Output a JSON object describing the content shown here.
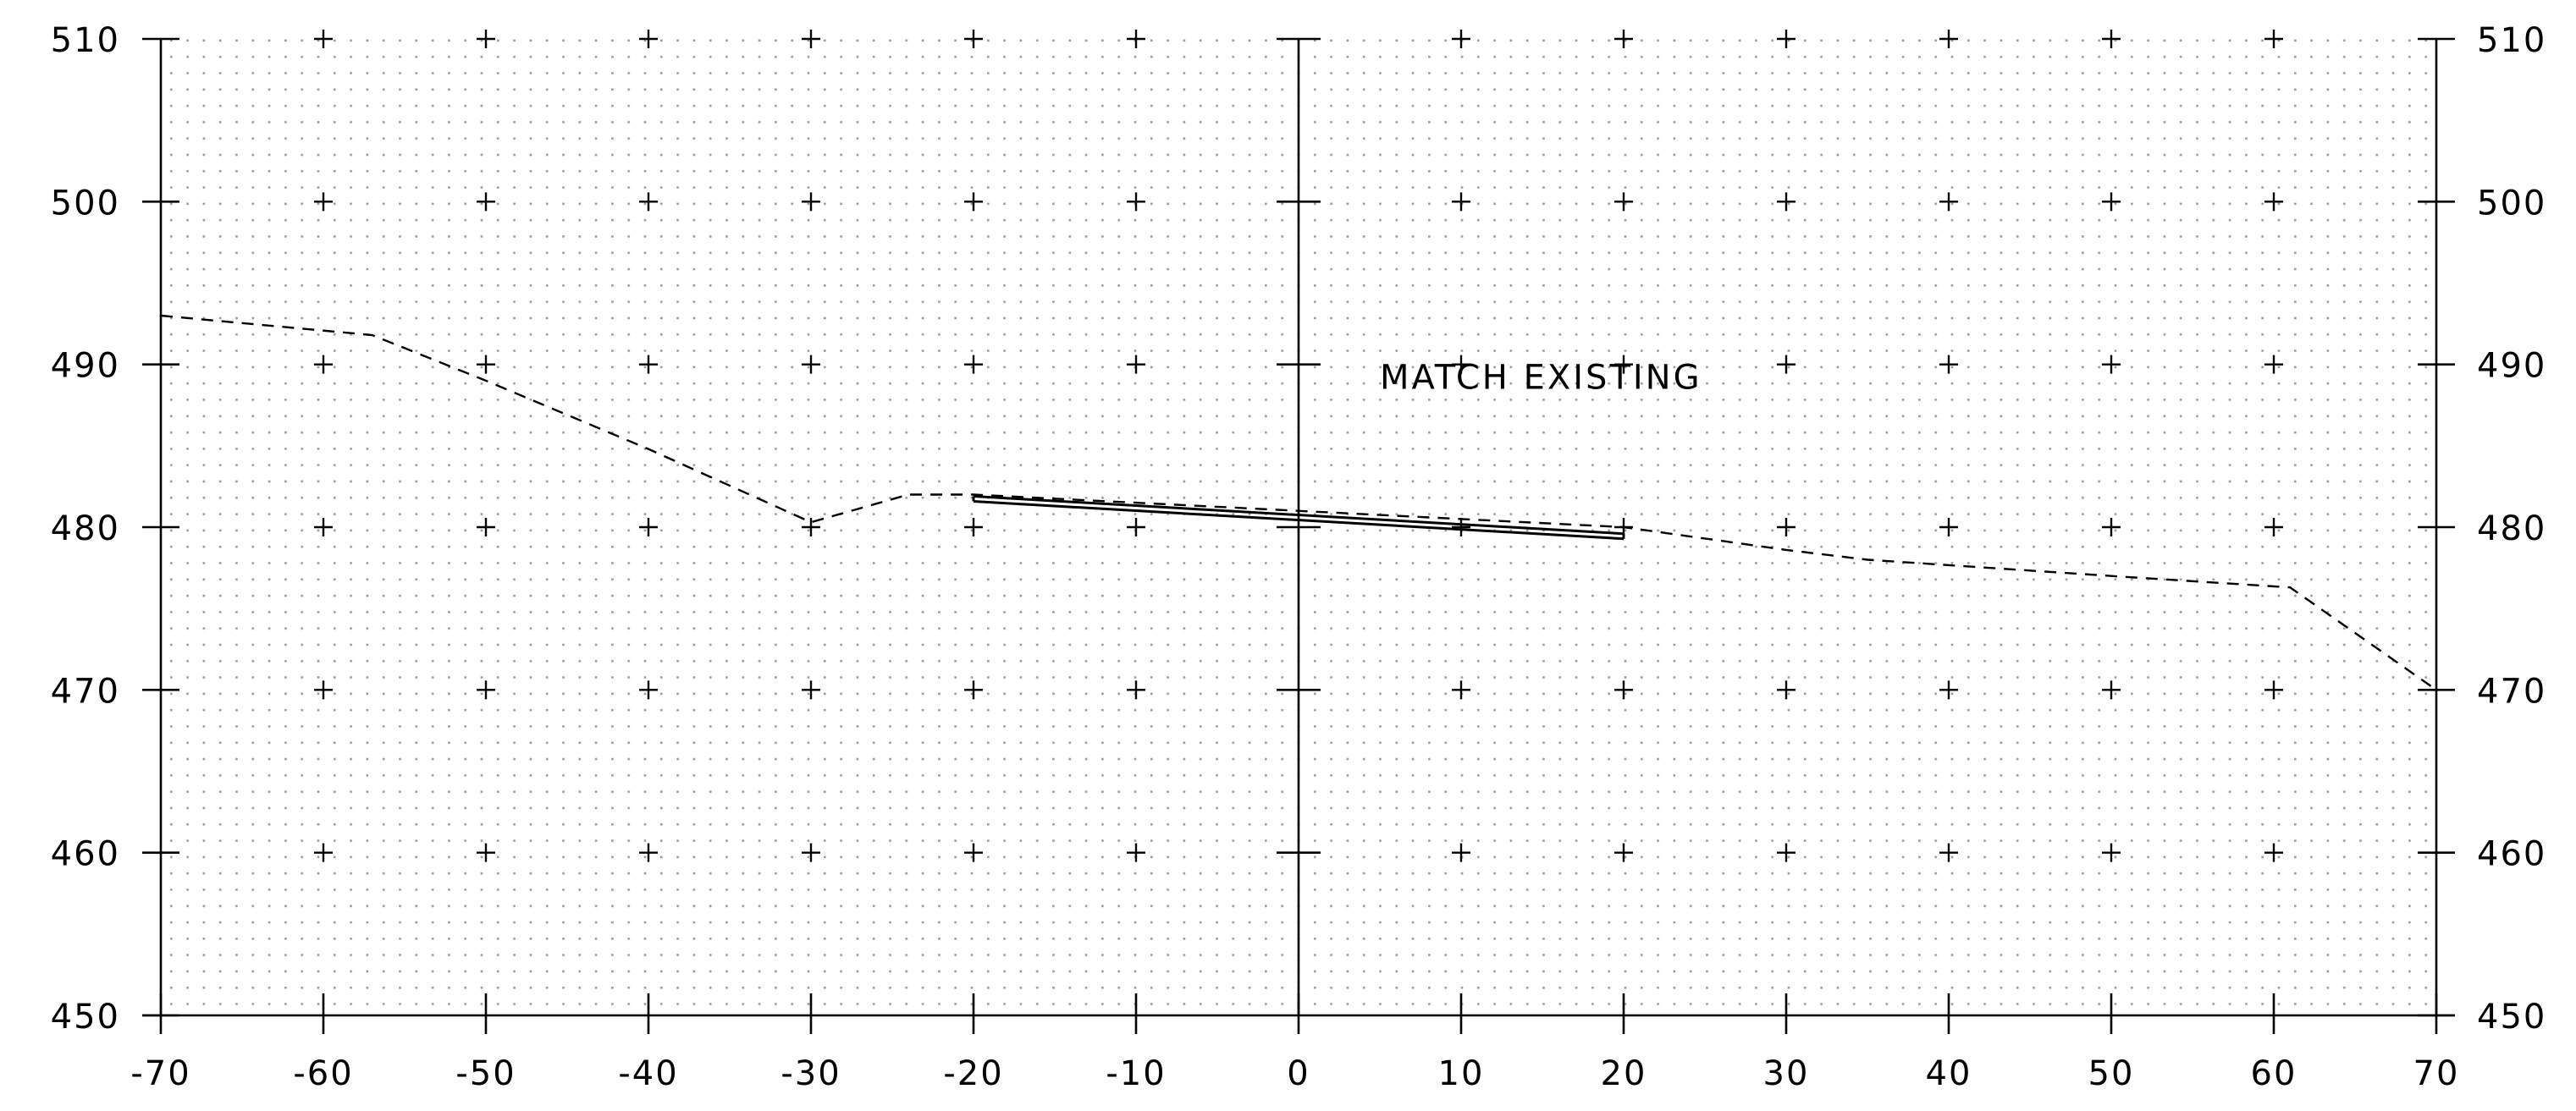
{
  "chart_data": {
    "type": "line",
    "title": "",
    "xlabel": "",
    "ylabel": "",
    "xlim": [
      -70,
      70
    ],
    "ylim": [
      450,
      510
    ],
    "x_ticks": [
      -70,
      -60,
      -50,
      -40,
      -30,
      -20,
      -10,
      0,
      10,
      20,
      30,
      40,
      50,
      60,
      70
    ],
    "x_tick_labels": [
      "-70",
      "-60",
      "-50",
      "-40",
      "-30",
      "-20",
      "-10",
      "0",
      "10",
      "20",
      "30",
      "40",
      "50",
      "60",
      "70"
    ],
    "y_ticks": [
      450,
      460,
      470,
      480,
      490,
      500,
      510
    ],
    "y_tick_labels": [
      "450",
      "460",
      "470",
      "480",
      "490",
      "500",
      "510"
    ],
    "grid": "dotted",
    "grid_crosses": true,
    "center_axis_x": 0,
    "annotations": [
      {
        "text": "MATCH EXISTING",
        "x": 5,
        "y": 488.5
      }
    ],
    "series": [
      {
        "style": "dashed",
        "points": [
          [
            -70,
            493
          ],
          [
            -57,
            491.8
          ],
          [
            -50,
            489
          ],
          [
            -40,
            484.8
          ],
          [
            -30,
            480.3
          ],
          [
            -24,
            482
          ],
          [
            -20,
            482
          ],
          [
            20,
            480
          ],
          [
            30,
            478.6
          ],
          [
            35,
            478
          ],
          [
            50,
            477
          ],
          [
            61,
            476.3
          ],
          [
            70,
            470
          ]
        ]
      },
      {
        "style": "solid-double",
        "points": [
          [
            -20,
            481.9
          ],
          [
            20,
            479.6
          ]
        ]
      }
    ]
  },
  "colors": {
    "background": "#ffffff",
    "ink": "#000000",
    "grid_dot": "#9a9a9a"
  }
}
